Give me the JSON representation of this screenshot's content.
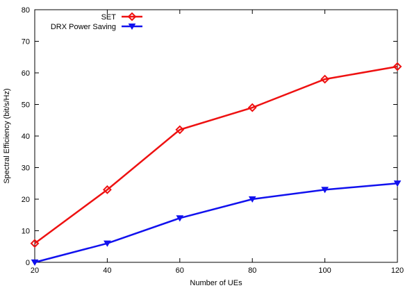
{
  "chart_data": {
    "type": "line",
    "title": "",
    "xlabel": "Number of UEs",
    "ylabel": "Spectral Efficiency (bit/s/Hz)",
    "x": [
      20,
      40,
      60,
      80,
      100,
      120
    ],
    "xlim": [
      20,
      120
    ],
    "ylim": [
      0,
      80
    ],
    "xticks": [
      20,
      40,
      60,
      80,
      100,
      120
    ],
    "yticks": [
      0,
      10,
      20,
      30,
      40,
      50,
      60,
      70,
      80
    ],
    "grid": false,
    "legend_position": "top-left",
    "series": [
      {
        "name": "SET",
        "values": [
          6,
          23,
          42,
          49,
          58,
          62
        ],
        "color": "#ee1111",
        "marker": "diamond"
      },
      {
        "name": "DRX Power Saving",
        "values": [
          0,
          6,
          14,
          20,
          23,
          25
        ],
        "color": "#1111ee",
        "marker": "triangle-down"
      }
    ]
  }
}
